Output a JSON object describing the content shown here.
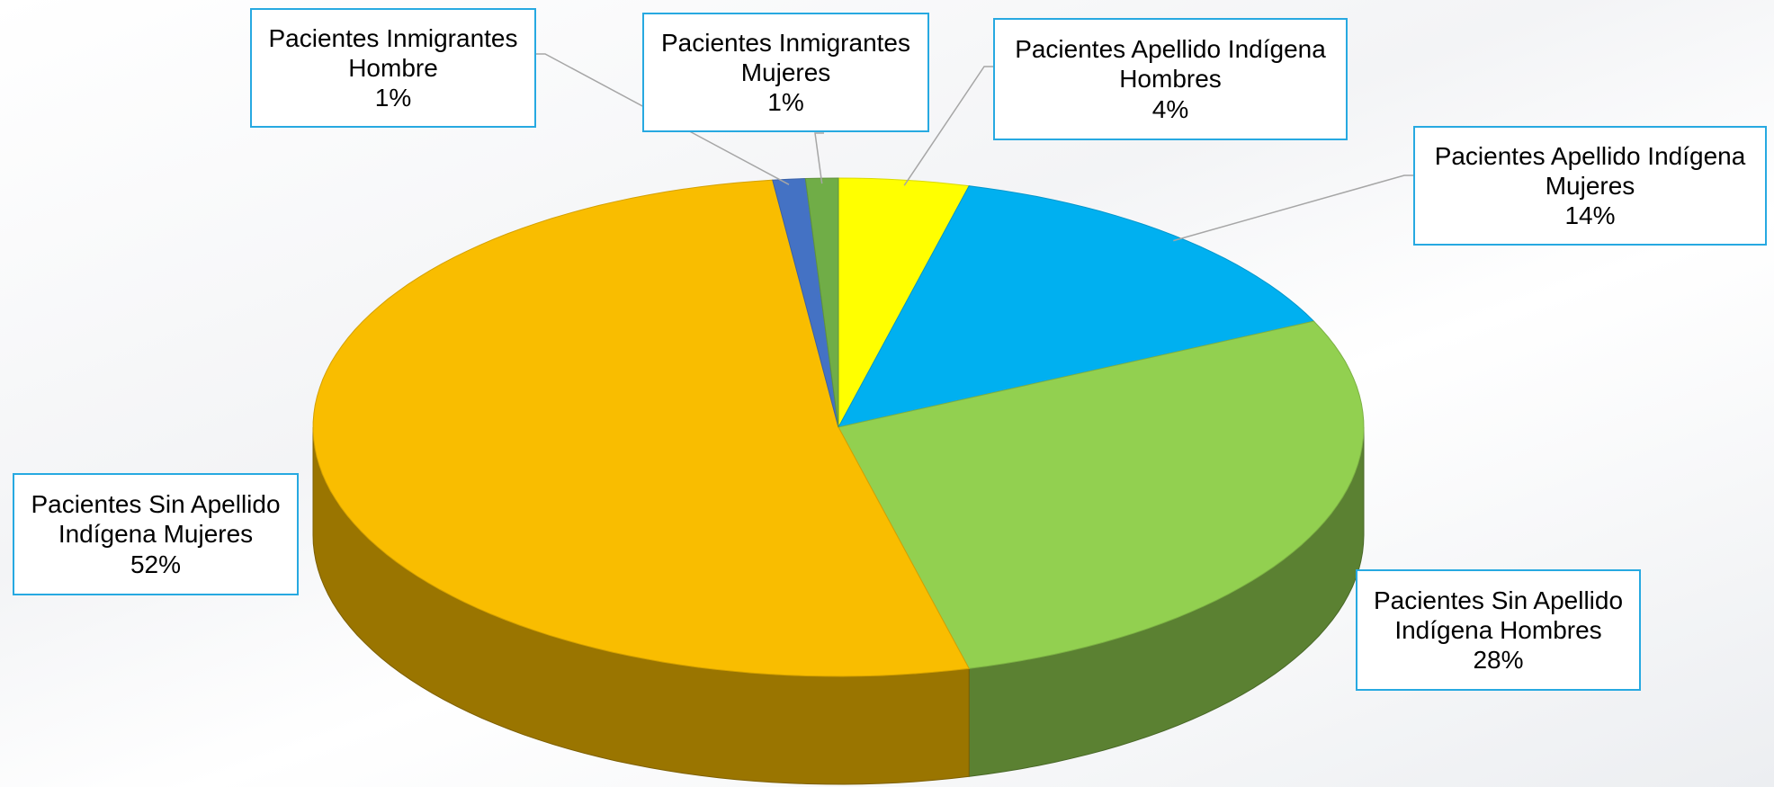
{
  "chart_data": {
    "type": "pie",
    "categories": [
      "Pacientes Apellido Indígena Hombres",
      "Pacientes Apellido Indígena Mujeres",
      "Pacientes Sin Apellido Indígena Hombres",
      "Pacientes Sin Apellido Indígena Mujeres",
      "Pacientes Inmigrantes Hombre",
      "Pacientes Inmigrantes Mujeres"
    ],
    "values": [
      4,
      14,
      28,
      52,
      1,
      1
    ],
    "value_labels": [
      "4%",
      "14%",
      "28%",
      "52%",
      "1%",
      "1%"
    ],
    "colors": [
      "#ffff00",
      "#00b0f0",
      "#92d050",
      "#f9bd00",
      "#4472c4",
      "#70ad47"
    ]
  }
}
